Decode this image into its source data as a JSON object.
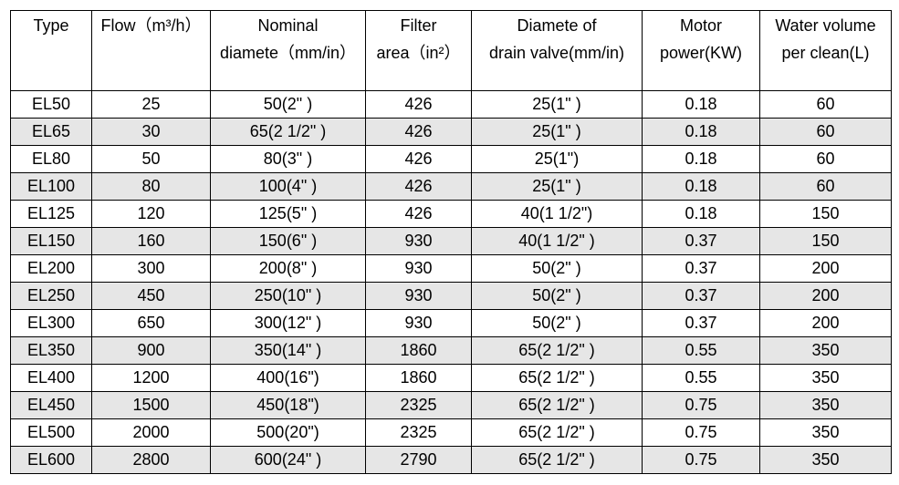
{
  "table": {
    "headers": [
      {
        "lines": [
          "Type"
        ]
      },
      {
        "lines": [
          "Flow（m³/h）"
        ]
      },
      {
        "lines": [
          "Nominal",
          "diamete（mm/in）"
        ]
      },
      {
        "lines": [
          "Filter",
          "area（in²）"
        ]
      },
      {
        "lines": [
          "Diamete of",
          "drain valve(mm/in)"
        ]
      },
      {
        "lines": [
          "Motor",
          "power(KW)"
        ]
      },
      {
        "lines": [
          "Water volume",
          "per clean(L)"
        ]
      }
    ],
    "rows": [
      [
        "EL50",
        "25",
        "50(2\" )",
        "426",
        "25(1\" )",
        "0.18",
        "60"
      ],
      [
        "EL65",
        "30",
        "65(2 1/2\" )",
        "426",
        "25(1\" )",
        "0.18",
        "60"
      ],
      [
        "EL80",
        "50",
        "80(3\" )",
        "426",
        "25(1\")",
        "0.18",
        "60"
      ],
      [
        "EL100",
        "80",
        "100(4\" )",
        "426",
        "25(1\" )",
        "0.18",
        "60"
      ],
      [
        "EL125",
        "120",
        "125(5\" )",
        "426",
        "40(1 1/2\")",
        "0.18",
        "150"
      ],
      [
        "EL150",
        "160",
        "150(6\" )",
        "930",
        "40(1 1/2\" )",
        "0.37",
        "150"
      ],
      [
        "EL200",
        "300",
        "200(8\" )",
        "930",
        "50(2\" )",
        "0.37",
        "200"
      ],
      [
        "EL250",
        "450",
        "250(10\" )",
        "930",
        "50(2\" )",
        "0.37",
        "200"
      ],
      [
        "EL300",
        "650",
        "300(12\" )",
        "930",
        "50(2\" )",
        "0.37",
        "200"
      ],
      [
        "EL350",
        "900",
        "350(14\" )",
        "1860",
        "65(2 1/2\" )",
        "0.55",
        "350"
      ],
      [
        "EL400",
        "1200",
        "400(16\")",
        "1860",
        "65(2 1/2\" )",
        "0.55",
        "350"
      ],
      [
        "EL450",
        "1500",
        "450(18\")",
        "2325",
        "65(2 1/2\" )",
        "0.75",
        "350"
      ],
      [
        "EL500",
        "2000",
        "500(20\")",
        "2325",
        "65(2 1/2\" )",
        "0.75",
        "350"
      ],
      [
        "EL600",
        "2800",
        "600(24\" )",
        "2790",
        "65(2 1/2\" )",
        "0.75",
        "350"
      ]
    ]
  },
  "colors": {
    "border": "#000000",
    "stripe": "#e6e6e6",
    "background": "#ffffff",
    "text": "#000000"
  }
}
